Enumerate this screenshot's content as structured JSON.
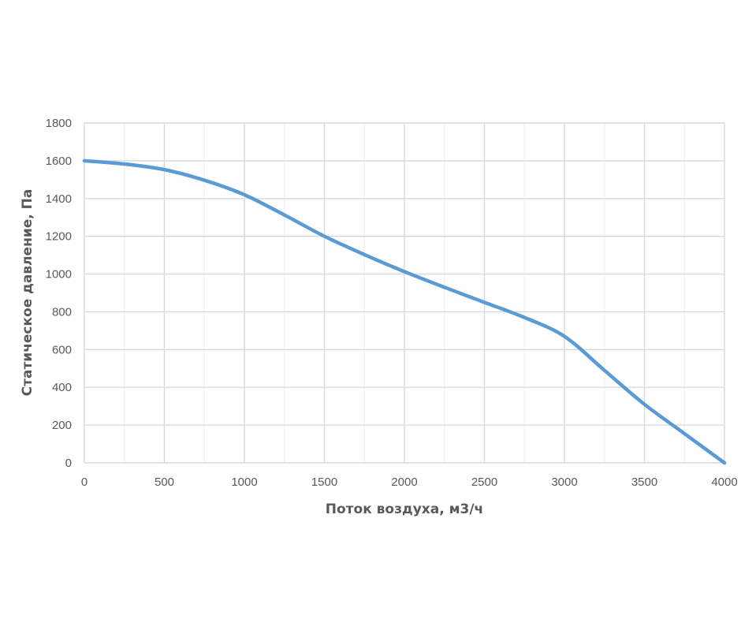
{
  "chart_data": {
    "type": "line",
    "title": "",
    "xlabel": "Поток воздуха, м3/ч",
    "ylabel": "Статическое давление, Па",
    "xlim": [
      0,
      4000
    ],
    "ylim": [
      0,
      1800
    ],
    "x_ticks": [
      "0",
      "500",
      "1000",
      "1500",
      "2000",
      "2500",
      "3000",
      "3500",
      "4000"
    ],
    "y_ticks": [
      "0",
      "200",
      "400",
      "600",
      "800",
      "1000",
      "1200",
      "1400",
      "1600",
      "1800"
    ],
    "x_tick_values": [
      0,
      500,
      1000,
      1500,
      2000,
      2500,
      3000,
      3500,
      4000
    ],
    "y_tick_values": [
      0,
      200,
      400,
      600,
      800,
      1000,
      1200,
      1400,
      1600,
      1800
    ],
    "x_minor_grid_step": 250,
    "grid": true,
    "legend": "none",
    "series": [
      {
        "color": "#5B9BD5",
        "x": [
          0,
          250,
          500,
          750,
          1000,
          1250,
          1500,
          1750,
          2000,
          2250,
          2500,
          2750,
          3000,
          3250,
          3500,
          3750,
          4000
        ],
        "y": [
          1600,
          1583,
          1553,
          1497,
          1420,
          1313,
          1200,
          1103,
          1013,
          930,
          850,
          770,
          670,
          490,
          310,
          155,
          0
        ]
      }
    ]
  }
}
